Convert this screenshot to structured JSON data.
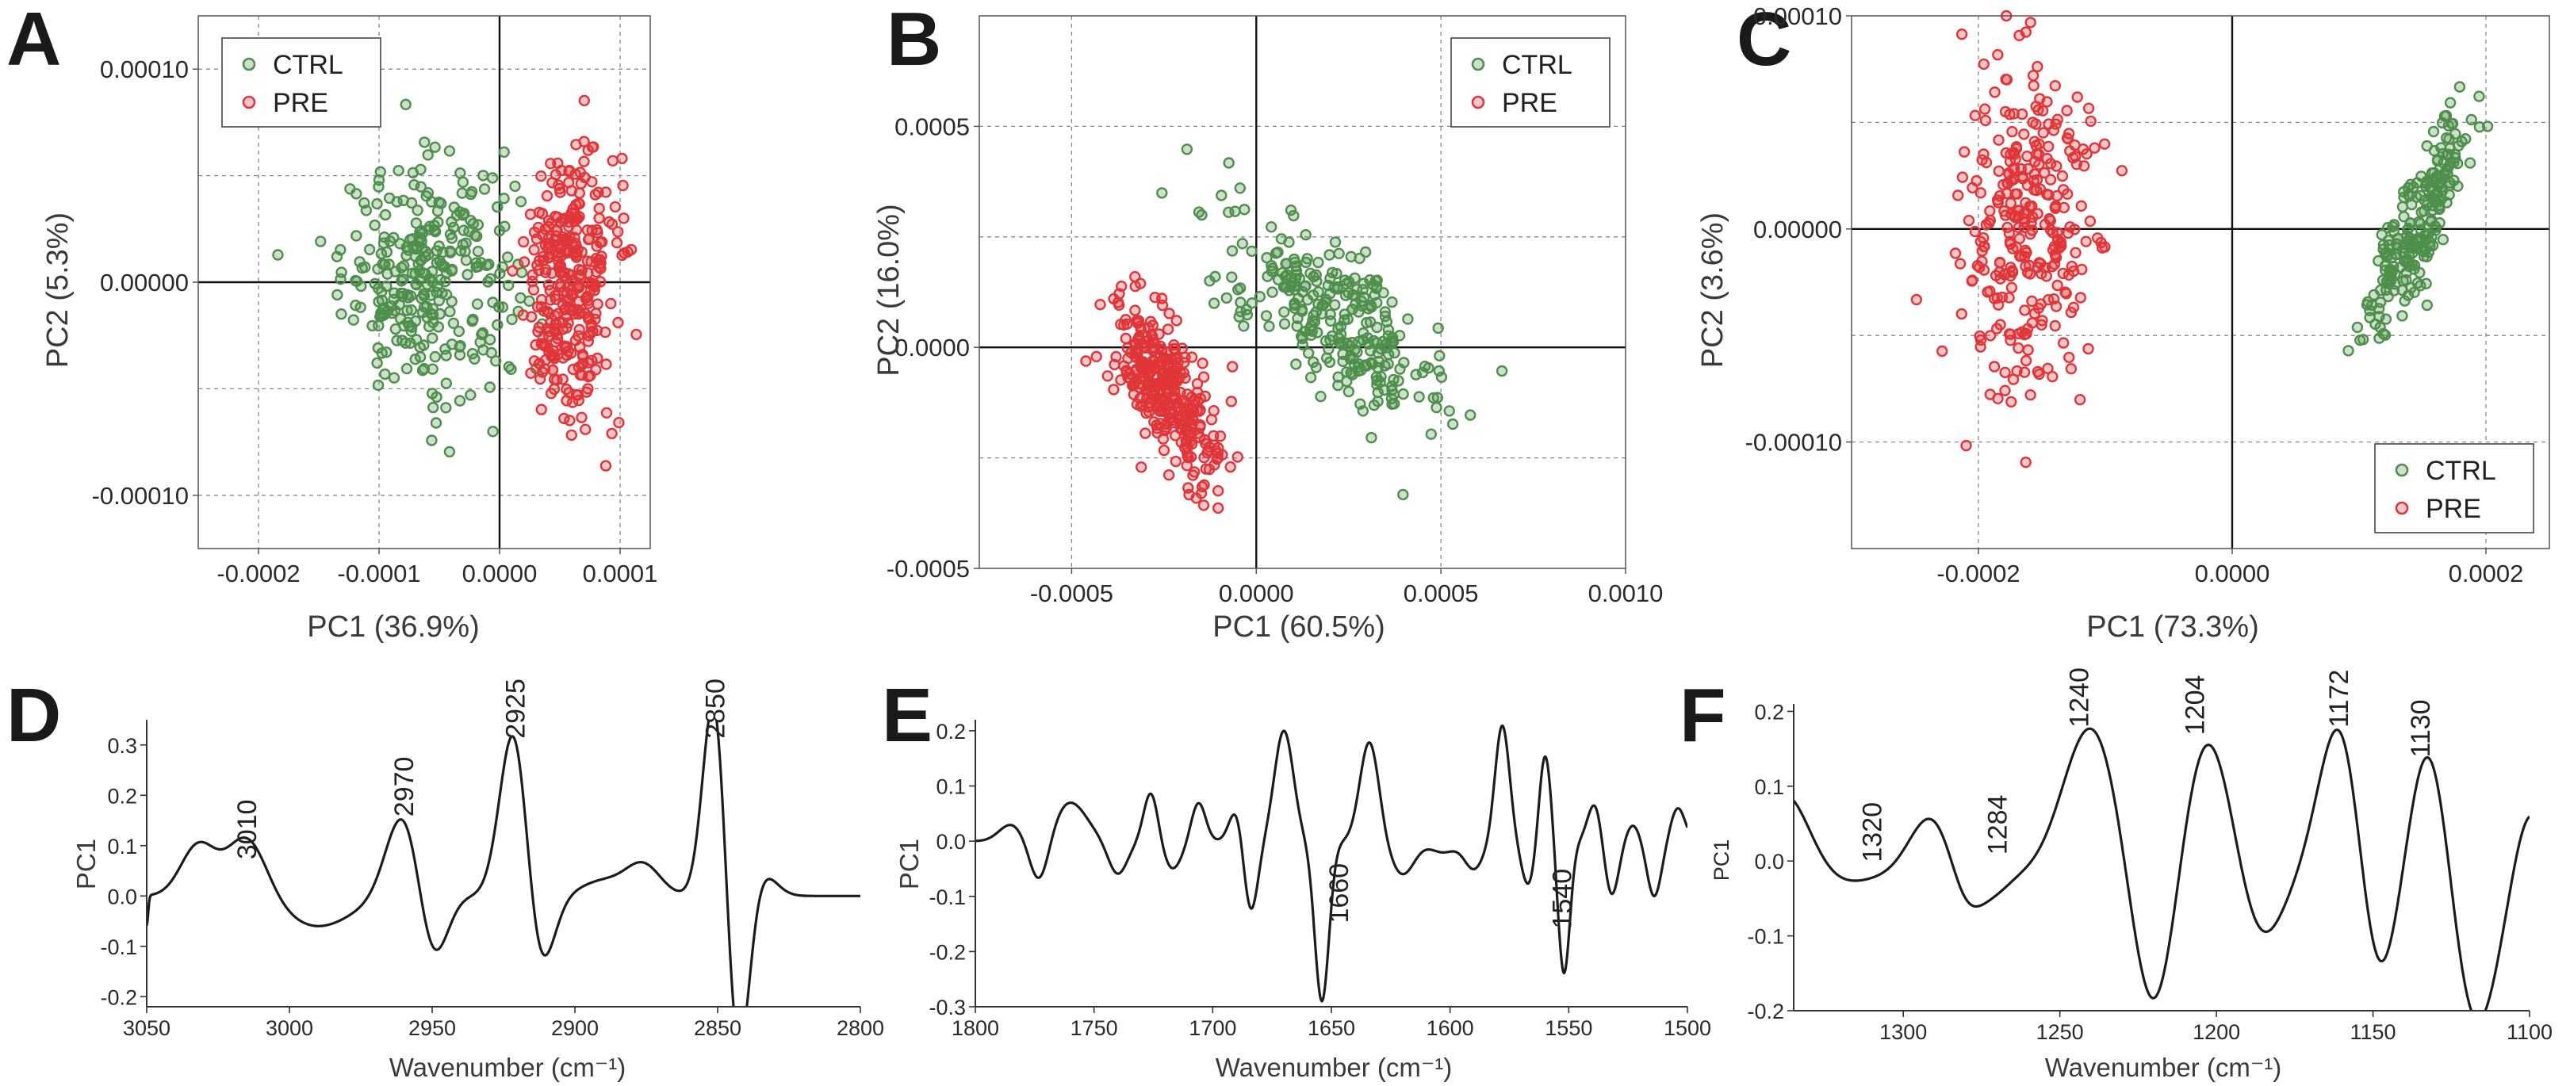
{
  "panel_letters": [
    "A",
    "B",
    "C",
    "D",
    "E",
    "F"
  ],
  "chart_data": [
    {
      "id": "A",
      "type": "scatter",
      "xlabel": "PC1 (36.9%)",
      "ylabel": "PC2 (5.3%)",
      "xlim": [
        -0.00025,
        0.000125
      ],
      "ylim": [
        -0.000125,
        0.000125
      ],
      "xticks": [
        -0.0002,
        -0.0001,
        0.0,
        0.0001
      ],
      "xtick_labels": [
        "-0.0002",
        "-0.0001",
        "0.0000",
        "0.0001"
      ],
      "yticks": [
        -0.0001,
        0.0,
        0.0001
      ],
      "ytick_labels": [
        "-0.00010",
        "0.00000",
        "0.00010"
      ],
      "xgrid": [
        -0.0002,
        -0.0001,
        0.0001
      ],
      "ygrid": [
        -0.0001,
        -5e-05,
        5e-05,
        0.0001
      ],
      "legend": [
        "CTRL",
        "PRE"
      ],
      "legend_position": "top-left",
      "series": [
        {
          "name": "CTRL",
          "color": "#4f8f4c",
          "n": 300,
          "cx": -5.8e-05,
          "cy": 3e-06,
          "sx": 3.6e-05,
          "sy": 2.7e-05,
          "rho": 0.0
        },
        {
          "name": "PRE",
          "color": "#e0363a",
          "n": 330,
          "cx": 5.8e-05,
          "cy": -2e-06,
          "sx": 1.9e-05,
          "sy": 3e-05,
          "rho": 0.0
        }
      ]
    },
    {
      "id": "B",
      "type": "scatter",
      "xlabel": "PC1 (60.5%)",
      "ylabel": "PC2 (16.0%)",
      "xlim": [
        -0.00075,
        0.001
      ],
      "ylim": [
        -0.0005,
        0.00075
      ],
      "xticks": [
        -0.0005,
        0.0,
        0.0005,
        0.001
      ],
      "xtick_labels": [
        "-0.0005",
        "0.0000",
        "0.0005",
        "0.0010"
      ],
      "yticks": [
        -0.0005,
        0.0,
        0.0005
      ],
      "ytick_labels": [
        "-0.0005",
        "0.0000",
        "0.0005"
      ],
      "xgrid": [
        -0.0005,
        0.0005
      ],
      "ygrid": [
        -0.00025,
        0.00025,
        0.0005
      ],
      "legend": [
        "CTRL",
        "PRE"
      ],
      "legend_position": "top-right",
      "series": [
        {
          "name": "CTRL",
          "color": "#4f8f4c",
          "n": 280,
          "cx": 0.00021,
          "cy": 7e-05,
          "sx": 0.00015,
          "sy": 0.00012,
          "rho": -0.72
        },
        {
          "name": "PRE",
          "color": "#e0363a",
          "n": 340,
          "cx": -0.00025,
          "cy": -9e-05,
          "sx": 7e-05,
          "sy": 0.0001,
          "rho": -0.7
        }
      ]
    },
    {
      "id": "C",
      "type": "scatter",
      "xlabel": "PC1 (73.3%)",
      "ylabel": "PC2 (3.6%)",
      "xlim": [
        -0.0003,
        0.00025
      ],
      "ylim": [
        -0.00015,
        0.0001
      ],
      "xticks": [
        -0.0002,
        0.0,
        0.0002
      ],
      "xtick_labels": [
        "-0.0002",
        "0.0000",
        "0.0002"
      ],
      "yticks": [
        -0.0001,
        0.0,
        0.0001
      ],
      "ytick_labels": [
        "-0.00010",
        "0.00000",
        "0.00010"
      ],
      "xgrid": [
        -0.0002,
        0.0002
      ],
      "ygrid": [
        -0.0001,
        -5e-05,
        5e-05
      ],
      "legend": [
        "CTRL",
        "PRE"
      ],
      "legend_position": "bottom-right",
      "series": [
        {
          "name": "CTRL",
          "color": "#4f8f4c",
          "n": 230,
          "cx": 0.000148,
          "cy": 4e-06,
          "sx": 2.1e-05,
          "sy": 2.7e-05,
          "rho": 0.85
        },
        {
          "name": "PRE",
          "color": "#e0363a",
          "n": 300,
          "cx": -0.00016,
          "cy": 2e-06,
          "sx": 2.6e-05,
          "sy": 3.8e-05,
          "rho": 0.0
        }
      ]
    },
    {
      "id": "D",
      "type": "line",
      "xlabel": "Wavenumber (cm⁻¹)",
      "ylabel": "PC1",
      "xlim": [
        3050,
        2800
      ],
      "ylim": [
        -0.22,
        0.35
      ],
      "xticks": [
        3050,
        3000,
        2950,
        2900,
        2850,
        2800
      ],
      "xtick_labels": [
        "3050",
        "3000",
        "2950",
        "2900",
        "2850",
        "2800"
      ],
      "yticks": [
        -0.2,
        -0.1,
        0.0,
        0.1,
        0.2,
        0.3
      ],
      "ytick_labels": [
        "-0.2",
        "-0.1",
        "0.0",
        "0.1",
        "0.2",
        "0.3"
      ],
      "peak_labels": [
        "3010",
        "2970",
        "2925",
        "2850"
      ],
      "peak_label_x": [
        3015,
        2960,
        2921,
        2851
      ],
      "peak_label_y": [
        0.06,
        0.145,
        0.3,
        0.3
      ],
      "peaks": [
        [
          3050,
          -0.06,
          0
        ],
        [
          3032,
          0.1,
          6
        ],
        [
          3015,
          0.12,
          7
        ],
        [
          2990,
          -0.06,
          12
        ],
        [
          2960,
          0.17,
          6
        ],
        [
          2950,
          -0.14,
          5
        ],
        [
          2921,
          0.36,
          5
        ],
        [
          2913,
          -0.18,
          5
        ],
        [
          2876,
          0.06,
          6
        ],
        [
          2890,
          0.03,
          8
        ],
        [
          2851,
          0.42,
          4
        ],
        [
          2843,
          -0.36,
          4
        ],
        [
          2835,
          0.05,
          5
        ]
      ],
      "baseline": 0.0
    },
    {
      "id": "E",
      "type": "line",
      "xlabel": "Wavenumber (cm⁻¹)",
      "ylabel": "PC1",
      "xlim": [
        1800,
        1500
      ],
      "ylim": [
        -0.3,
        0.22
      ],
      "xticks": [
        1800,
        1750,
        1700,
        1650,
        1600,
        1550,
        1500
      ],
      "xtick_labels": [
        "1800",
        "1750",
        "1700",
        "1650",
        "1600",
        "1550",
        "1500"
      ],
      "yticks": [
        -0.3,
        -0.2,
        -0.1,
        0.0,
        0.1,
        0.2
      ],
      "ytick_labels": [
        "-0.3",
        "-0.2",
        "-0.1",
        "0.0",
        "0.1",
        "0.2"
      ],
      "peak_labels": [
        "1660",
        "1540"
      ],
      "peak_label_x": [
        1647,
        1553
      ],
      "peak_label_y": [
        -0.16,
        -0.17
      ],
      "peaks": [
        [
          1785,
          0.03,
          5
        ],
        [
          1773,
          -0.08,
          4
        ],
        [
          1760,
          0.07,
          7
        ],
        [
          1740,
          -0.06,
          4
        ],
        [
          1726,
          0.09,
          3
        ],
        [
          1717,
          -0.05,
          4
        ],
        [
          1706,
          0.07,
          3
        ],
        [
          1690,
          0.06,
          3
        ],
        [
          1684,
          -0.13,
          3
        ],
        [
          1670,
          0.2,
          4
        ],
        [
          1654,
          -0.29,
          3
        ],
        [
          1634,
          0.18,
          4
        ],
        [
          1620,
          -0.06,
          5
        ],
        [
          1603,
          -0.02,
          5
        ],
        [
          1590,
          -0.05,
          4
        ],
        [
          1578,
          0.21,
          3
        ],
        [
          1567,
          -0.08,
          3
        ],
        [
          1560,
          0.16,
          2.5
        ],
        [
          1552,
          -0.24,
          2.5
        ],
        [
          1539,
          0.07,
          3
        ],
        [
          1532,
          -0.1,
          3
        ],
        [
          1523,
          0.03,
          3
        ],
        [
          1514,
          -0.1,
          3
        ],
        [
          1504,
          0.06,
          3
        ]
      ],
      "baseline": 0.0
    },
    {
      "id": "F",
      "type": "line",
      "xlabel": "Wavenumber (cm⁻¹)",
      "ylabel": "PC1",
      "xlim": [
        1335,
        1100
      ],
      "ylim": [
        -0.2,
        0.21
      ],
      "xticks": [
        1300,
        1250,
        1200,
        1150,
        1100
      ],
      "xtick_labels": [
        "1300",
        "1250",
        "1200",
        "1150",
        "1100"
      ],
      "yticks": [
        -0.2,
        -0.1,
        0.0,
        0.1,
        0.2
      ],
      "ytick_labels": [
        "-0.2",
        "-0.1",
        "0.0",
        "0.1",
        "0.2"
      ],
      "peak_labels": [
        "1320",
        "1284",
        "1240",
        "1204",
        "1172",
        "1130"
      ],
      "peak_label_x": [
        1310,
        1270,
        1244,
        1207,
        1161,
        1135
      ],
      "peak_label_y": [
        -0.01,
        0.0,
        0.17,
        0.16,
        0.17,
        0.13
      ],
      "peaks": [
        [
          1338,
          0.11,
          8
        ],
        [
          1320,
          -0.01,
          8
        ],
        [
          1291,
          0.08,
          7
        ],
        [
          1280,
          -0.05,
          5
        ],
        [
          1271,
          -0.02,
          5
        ],
        [
          1240,
          0.2,
          9
        ],
        [
          1220,
          -0.2,
          7
        ],
        [
          1203,
          0.19,
          8
        ],
        [
          1186,
          -0.09,
          7
        ],
        [
          1160,
          0.22,
          7
        ],
        [
          1149,
          -0.17,
          6
        ],
        [
          1132,
          0.18,
          6
        ],
        [
          1117,
          -0.2,
          7
        ],
        [
          1100,
          0.09,
          5
        ]
      ],
      "baseline": -0.02
    }
  ]
}
